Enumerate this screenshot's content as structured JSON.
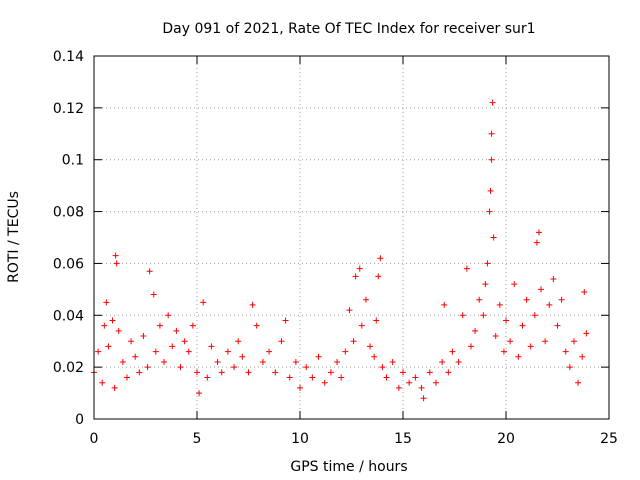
{
  "chart_data": {
    "type": "scatter",
    "title": "Day 091 of 2021, Rate Of TEC Index for receiver sur1",
    "xlabel": "GPS time / hours",
    "ylabel": "ROTI / TECUs",
    "xlim": [
      0,
      25
    ],
    "ylim": [
      0,
      0.14
    ],
    "x_ticks": [
      "0",
      "5",
      "10",
      "15",
      "20",
      "25"
    ],
    "y_ticks": [
      "0",
      "0.02",
      "0.04",
      "0.06",
      "0.08",
      "0.1",
      "0.12",
      "0.14"
    ],
    "grid": true,
    "marker": "+",
    "color": "#ff0000",
    "series": [
      {
        "points": [
          [
            0.0,
            0.018
          ],
          [
            0.2,
            0.026
          ],
          [
            0.4,
            0.014
          ],
          [
            0.5,
            0.036
          ],
          [
            0.6,
            0.045
          ],
          [
            0.7,
            0.028
          ],
          [
            0.9,
            0.038
          ],
          [
            1.0,
            0.012
          ],
          [
            1.05,
            0.063
          ],
          [
            1.1,
            0.06
          ],
          [
            1.2,
            0.034
          ],
          [
            1.4,
            0.022
          ],
          [
            1.6,
            0.016
          ],
          [
            1.8,
            0.03
          ],
          [
            2.0,
            0.024
          ],
          [
            2.2,
            0.018
          ],
          [
            2.4,
            0.032
          ],
          [
            2.6,
            0.02
          ],
          [
            2.7,
            0.057
          ],
          [
            2.9,
            0.048
          ],
          [
            3.0,
            0.026
          ],
          [
            3.2,
            0.036
          ],
          [
            3.4,
            0.022
          ],
          [
            3.6,
            0.04
          ],
          [
            3.8,
            0.028
          ],
          [
            4.0,
            0.034
          ],
          [
            4.2,
            0.02
          ],
          [
            4.4,
            0.03
          ],
          [
            4.6,
            0.026
          ],
          [
            4.8,
            0.036
          ],
          [
            5.0,
            0.018
          ],
          [
            5.1,
            0.01
          ],
          [
            5.3,
            0.045
          ],
          [
            5.5,
            0.016
          ],
          [
            5.7,
            0.028
          ],
          [
            6.0,
            0.022
          ],
          [
            6.2,
            0.018
          ],
          [
            6.5,
            0.026
          ],
          [
            6.8,
            0.02
          ],
          [
            7.0,
            0.03
          ],
          [
            7.2,
            0.024
          ],
          [
            7.5,
            0.018
          ],
          [
            7.7,
            0.044
          ],
          [
            7.9,
            0.036
          ],
          [
            8.2,
            0.022
          ],
          [
            8.5,
            0.026
          ],
          [
            8.8,
            0.018
          ],
          [
            9.1,
            0.03
          ],
          [
            9.3,
            0.038
          ],
          [
            9.5,
            0.016
          ],
          [
            9.8,
            0.022
          ],
          [
            10.0,
            0.012
          ],
          [
            10.3,
            0.02
          ],
          [
            10.6,
            0.016
          ],
          [
            10.9,
            0.024
          ],
          [
            11.2,
            0.014
          ],
          [
            11.5,
            0.018
          ],
          [
            11.8,
            0.022
          ],
          [
            12.0,
            0.016
          ],
          [
            12.2,
            0.026
          ],
          [
            12.4,
            0.042
          ],
          [
            12.6,
            0.03
          ],
          [
            12.7,
            0.055
          ],
          [
            12.9,
            0.058
          ],
          [
            13.0,
            0.036
          ],
          [
            13.2,
            0.046
          ],
          [
            13.4,
            0.028
          ],
          [
            13.6,
            0.024
          ],
          [
            13.7,
            0.038
          ],
          [
            13.8,
            0.055
          ],
          [
            13.9,
            0.062
          ],
          [
            14.0,
            0.02
          ],
          [
            14.2,
            0.016
          ],
          [
            14.5,
            0.022
          ],
          [
            14.8,
            0.012
          ],
          [
            15.0,
            0.018
          ],
          [
            15.3,
            0.014
          ],
          [
            15.6,
            0.016
          ],
          [
            15.9,
            0.012
          ],
          [
            16.0,
            0.008
          ],
          [
            16.3,
            0.018
          ],
          [
            16.6,
            0.014
          ],
          [
            16.9,
            0.022
          ],
          [
            17.0,
            0.044
          ],
          [
            17.2,
            0.018
          ],
          [
            17.4,
            0.026
          ],
          [
            17.7,
            0.022
          ],
          [
            17.9,
            0.04
          ],
          [
            18.1,
            0.058
          ],
          [
            18.3,
            0.028
          ],
          [
            18.5,
            0.034
          ],
          [
            18.7,
            0.046
          ],
          [
            18.9,
            0.04
          ],
          [
            19.0,
            0.052
          ],
          [
            19.1,
            0.06
          ],
          [
            19.2,
            0.08
          ],
          [
            19.25,
            0.088
          ],
          [
            19.3,
            0.1
          ],
          [
            19.3,
            0.11
          ],
          [
            19.35,
            0.122
          ],
          [
            19.4,
            0.07
          ],
          [
            19.5,
            0.032
          ],
          [
            19.7,
            0.044
          ],
          [
            19.9,
            0.026
          ],
          [
            20.0,
            0.038
          ],
          [
            20.2,
            0.03
          ],
          [
            20.4,
            0.052
          ],
          [
            20.6,
            0.024
          ],
          [
            20.8,
            0.036
          ],
          [
            21.0,
            0.046
          ],
          [
            21.2,
            0.028
          ],
          [
            21.4,
            0.04
          ],
          [
            21.5,
            0.068
          ],
          [
            21.6,
            0.072
          ],
          [
            21.7,
            0.05
          ],
          [
            21.9,
            0.03
          ],
          [
            22.1,
            0.044
          ],
          [
            22.3,
            0.054
          ],
          [
            22.5,
            0.036
          ],
          [
            22.7,
            0.046
          ],
          [
            22.9,
            0.026
          ],
          [
            23.1,
            0.02
          ],
          [
            23.3,
            0.03
          ],
          [
            23.5,
            0.014
          ],
          [
            23.7,
            0.024
          ],
          [
            23.8,
            0.049
          ],
          [
            23.9,
            0.033
          ]
        ]
      }
    ]
  }
}
